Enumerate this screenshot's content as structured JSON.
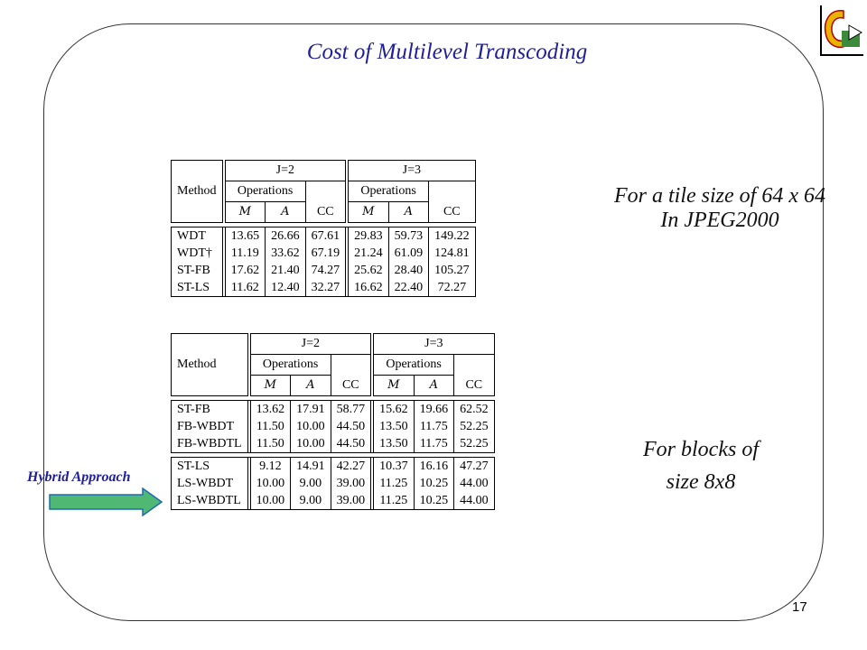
{
  "title": "Cost of Multilevel Transcoding",
  "page_number": "17",
  "table1": {
    "method_label": "Method",
    "j2_label": "J=2",
    "j3_label": "J=3",
    "operations_label": "Operations",
    "m_label": "M",
    "a_label": "A",
    "cc_label": "CC",
    "rows": [
      {
        "method": "WDT",
        "v": [
          "13.65",
          "26.66",
          "67.61",
          "29.83",
          "59.73",
          "149.22"
        ]
      },
      {
        "method": "WDT†",
        "v": [
          "11.19",
          "33.62",
          "67.19",
          "21.24",
          "61.09",
          "124.81"
        ]
      },
      {
        "method": "ST-FB",
        "v": [
          "17.62",
          "21.40",
          "74.27",
          "25.62",
          "28.40",
          "105.27"
        ]
      },
      {
        "method": "ST-LS",
        "v": [
          "11.62",
          "12.40",
          "32.27",
          "16.62",
          "22.40",
          "72.27"
        ]
      }
    ]
  },
  "table2": {
    "method_label": "Method",
    "j2_label": "J=2",
    "j3_label": "J=3",
    "operations_label": "Operations",
    "m_label": "M",
    "a_label": "A",
    "cc_label": "CC",
    "group1": [
      {
        "method": "ST-FB",
        "v": [
          "13.62",
          "17.91",
          "58.77",
          "15.62",
          "19.66",
          "62.52"
        ]
      },
      {
        "method": "FB-WBDT",
        "v": [
          "11.50",
          "10.00",
          "44.50",
          "13.50",
          "11.75",
          "52.25"
        ]
      },
      {
        "method": "FB-WBDTL",
        "v": [
          "11.50",
          "10.00",
          "44.50",
          "13.50",
          "11.75",
          "52.25"
        ]
      }
    ],
    "group2": [
      {
        "method": "ST-LS",
        "v": [
          "9.12",
          "14.91",
          "42.27",
          "10.37",
          "16.16",
          "47.27"
        ]
      },
      {
        "method": "LS-WBDT",
        "v": [
          "10.00",
          "9.00",
          "39.00",
          "11.25",
          "10.25",
          "44.00"
        ]
      },
      {
        "method": "LS-WBDTL",
        "v": [
          "10.00",
          "9.00",
          "39.00",
          "11.25",
          "10.25",
          "44.00"
        ]
      }
    ]
  },
  "note1": {
    "line1": "For a tile size of 64 x 64",
    "line2": "In JPEG2000"
  },
  "note2": {
    "line1": "For  blocks of",
    "line2": "size 8x8"
  },
  "hybrid_label": "Hybrid Approach",
  "colors": {
    "title": "#1f1f99",
    "arrow_fill": "#4fb872",
    "arrow_stroke": "#1f6bb5"
  }
}
